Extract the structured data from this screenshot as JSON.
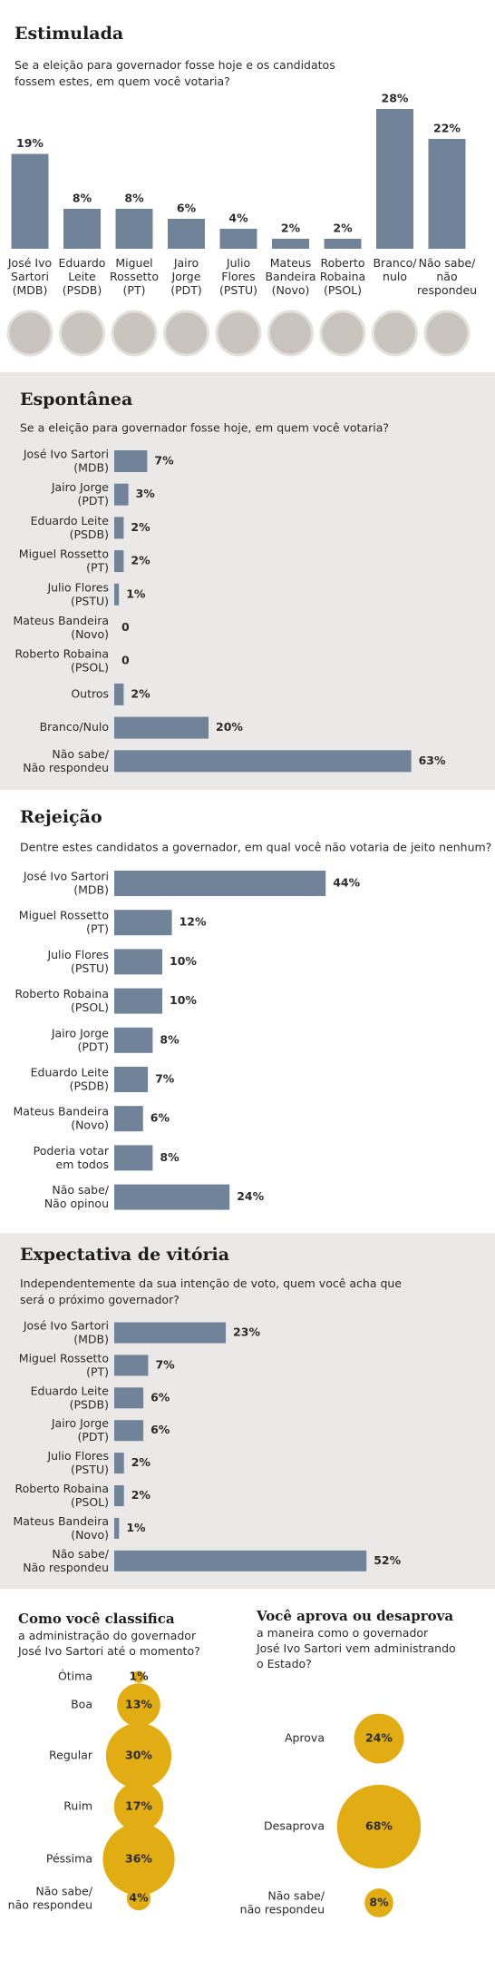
{
  "chart_data": [
    {
      "type": "bar",
      "title": "Estimulada",
      "subtitle": "Se a eleição para governador fosse hoje e os candidatos\nfossem estes, em quem você votaria?",
      "categories": [
        "José Ivo\nSartori\n(MDB)",
        "Eduardo\nLeite\n(PSDB)",
        "Miguel\nRossetto\n(PT)",
        "Jairo\nJorge\n(PDT)",
        "Julio\nFlores\n(PSTU)",
        "Mateus\nBandeira\n(Novo)",
        "Roberto\nRobaina\n(PSOL)",
        "Branco/\nnulo",
        "Não sabe/\nnão\nrespondeu"
      ],
      "values": [
        19,
        8,
        8,
        6,
        4,
        2,
        2,
        28,
        22
      ],
      "value_labels": [
        "19%",
        "8%",
        "8%",
        "6%",
        "4%",
        "2%",
        "2%",
        "28%",
        "22%"
      ],
      "color": "#718399"
    },
    {
      "type": "barh",
      "title": "Espontânea",
      "subtitle": "Se a eleição para governador fosse hoje, em quem você votaria?",
      "categories": [
        "José Ivo Sartori\n(MDB)",
        "Jairo Jorge\n(PDT)",
        "Eduardo Leite\n(PSDB)",
        "Miguel Rossetto\n(PT)",
        "Julio Flores\n(PSTU)",
        "Mateus Bandeira\n(Novo)",
        "Roberto Robaina\n(PSOL)",
        "Outros",
        "Branco/Nulo",
        "Não sabe/\nNão respondeu"
      ],
      "values": [
        7,
        3,
        2,
        2,
        1,
        0,
        0,
        2,
        20,
        63
      ],
      "value_labels": [
        "7%",
        "3%",
        "2%",
        "2%",
        "1%",
        "0",
        "0",
        "2%",
        "20%",
        "63%"
      ],
      "color": "#718399"
    },
    {
      "type": "barh",
      "title": "Rejeição",
      "subtitle": "Dentre estes candidatos a governador, em qual você não votaria de jeito nenhum?",
      "categories": [
        "José Ivo Sartori\n(MDB)",
        "Miguel Rossetto\n(PT)",
        "Julio Flores\n(PSTU)",
        "Roberto Robaina\n(PSOL)",
        "Jairo Jorge\n(PDT)",
        "Eduardo Leite\n(PSDB)",
        "Mateus Bandeira\n(Novo)",
        "Poderia votar\nem todos",
        "Não sabe/\nNão opinou"
      ],
      "values": [
        44,
        12,
        10,
        10,
        8,
        7,
        6,
        8,
        24
      ],
      "value_labels": [
        "44%",
        "12%",
        "10%",
        "10%",
        "8%",
        "7%",
        "6%",
        "8%",
        "24%"
      ],
      "color": "#718399"
    },
    {
      "type": "barh",
      "title": "Expectativa de vitória",
      "subtitle": "Independentemente da sua intenção de voto, quem você acha que\nserá o próximo governador?",
      "categories": [
        "José Ivo Sartori\n(MDB)",
        "Miguel Rossetto\n(PT)",
        "Eduardo Leite\n(PSDB)",
        "Jairo Jorge\n(PDT)",
        "Julio Flores\n(PSTU)",
        "Roberto Robaina\n(PSOL)",
        "Mateus Bandeira\n(Novo)",
        "Não sabe/\nNão respondeu"
      ],
      "values": [
        23,
        7,
        6,
        6,
        2,
        2,
        1,
        52
      ],
      "value_labels": [
        "23%",
        "7%",
        "6%",
        "6%",
        "2%",
        "2%",
        "1%",
        "52%"
      ],
      "color": "#718399"
    },
    {
      "type": "bubble",
      "title": "Como você classifica",
      "subtitle": "a administração do governador\nJosé Ivo Sartori até o momento?",
      "categories": [
        "Ótima",
        "Boa",
        "Regular",
        "Ruim",
        "Péssima",
        "Não sabe/\nnão respondeu"
      ],
      "values": [
        1,
        13,
        30,
        17,
        36,
        4
      ],
      "value_labels": [
        "1%",
        "13%",
        "30%",
        "17%",
        "36%",
        "4%"
      ],
      "color": "#e1ad12"
    },
    {
      "type": "bubble",
      "title": "Você aprova ou desaprova",
      "subtitle": "a maneira como o governador\nJosé Ivo Sartori vem administrando\no Estado?",
      "categories": [
        "Aprova",
        "Desaprova",
        "Não sabe/\nnão respondeu"
      ],
      "values": [
        24,
        68,
        8
      ],
      "value_labels": [
        "24%",
        "68%",
        "8%"
      ],
      "color": "#e1ad12"
    }
  ]
}
